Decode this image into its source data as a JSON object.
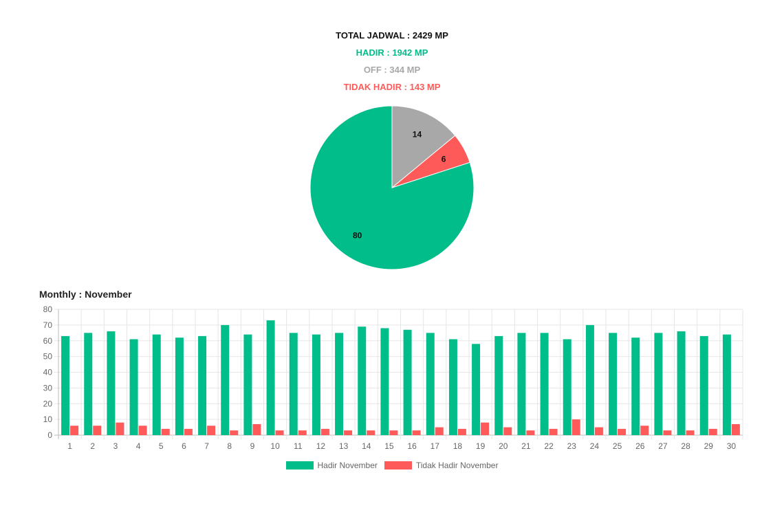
{
  "summary": {
    "total": "TOTAL JADWAL : 2429 MP",
    "hadir": "HADIR : 1942 MP",
    "off": "OFF : 344 MP",
    "tidak_hadir": "TIDAK HADIR : 143 MP"
  },
  "colors": {
    "hadir": "#00bd8a",
    "off": "#a8a8a8",
    "tidak_hadir": "#ff5a5a"
  },
  "monthly_title": "Monthly : November",
  "chart_data": [
    {
      "type": "pie",
      "slices": [
        {
          "label": "Hadir",
          "value": 80,
          "color": "#00bd8a"
        },
        {
          "label": "Tidak Hadir",
          "value": 6,
          "color": "#ff5a5a"
        },
        {
          "label": "Off",
          "value": 14,
          "color": "#a8a8a8"
        }
      ]
    },
    {
      "type": "bar",
      "title": "Monthly : November",
      "categories": [
        "1",
        "2",
        "3",
        "4",
        "5",
        "6",
        "7",
        "8",
        "9",
        "10",
        "11",
        "12",
        "13",
        "14",
        "15",
        "16",
        "17",
        "18",
        "19",
        "20",
        "21",
        "22",
        "23",
        "24",
        "25",
        "26",
        "27",
        "28",
        "29",
        "30"
      ],
      "series": [
        {
          "name": "Hadir November",
          "color": "#00bd8a",
          "values": [
            63,
            65,
            66,
            61,
            64,
            62,
            63,
            70,
            64,
            73,
            65,
            64,
            65,
            69,
            68,
            67,
            65,
            61,
            58,
            63,
            65,
            65,
            61,
            70,
            65,
            62,
            65,
            66,
            63,
            64
          ]
        },
        {
          "name": "Tidak Hadir November",
          "color": "#ff5a5a",
          "values": [
            6,
            6,
            8,
            6,
            4,
            4,
            6,
            3,
            7,
            3,
            3,
            4,
            3,
            3,
            3,
            3,
            5,
            4,
            8,
            5,
            3,
            4,
            10,
            5,
            4,
            6,
            3,
            3,
            4,
            7
          ]
        }
      ],
      "ylim": [
        0,
        80
      ],
      "yticks": [
        0,
        10,
        20,
        30,
        40,
        50,
        60,
        70,
        80
      ],
      "grid": true,
      "legend": "bottom"
    }
  ]
}
